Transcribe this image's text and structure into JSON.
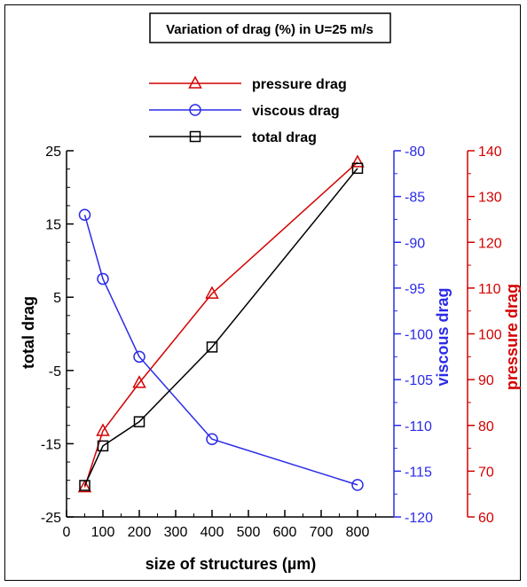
{
  "chart_data": {
    "type": "line",
    "title": "Variation of drag (%) in U=25 m/s",
    "xlabel": "size of structures (µm)",
    "xlim": [
      0,
      900
    ],
    "xticks": [
      0,
      100,
      200,
      300,
      400,
      500,
      600,
      700,
      800
    ],
    "axes": {
      "total": {
        "label": "total drag",
        "side": "left",
        "color": "#000000",
        "lim": [
          -25,
          25
        ],
        "ticks": [
          25,
          15,
          5,
          -5,
          -15,
          -25
        ]
      },
      "viscous": {
        "label": "viscous drag",
        "side": "right",
        "color": "#2b2be8",
        "lim": [
          -120,
          -80
        ],
        "ticks": [
          -80,
          -85,
          -90,
          -95,
          -100,
          -105,
          -110,
          -115,
          -120
        ]
      },
      "pressure": {
        "label": "pressure drag",
        "side": "right-outer",
        "color": "#d40000",
        "lim": [
          60,
          140
        ],
        "ticks": [
          140,
          130,
          120,
          110,
          100,
          90,
          80,
          70,
          60
        ]
      }
    },
    "x": [
      50,
      100,
      200,
      400,
      800
    ],
    "series": [
      {
        "name": "pressure drag",
        "axis": "pressure",
        "marker": "triangle",
        "color": "#d40000",
        "values": [
          66.5,
          78.8,
          89.3,
          108.8,
          137.5
        ]
      },
      {
        "name": "viscous drag",
        "axis": "viscous",
        "marker": "circle",
        "color": "#2b2be8",
        "values": [
          -87.0,
          -94.0,
          -102.5,
          -111.5,
          -116.5
        ]
      },
      {
        "name": "total drag",
        "axis": "total",
        "marker": "square",
        "color": "#000000",
        "values": [
          -20.7,
          -15.3,
          -12.0,
          -1.8,
          22.6
        ]
      }
    ],
    "legend_placement": "top-center",
    "grid": false
  }
}
